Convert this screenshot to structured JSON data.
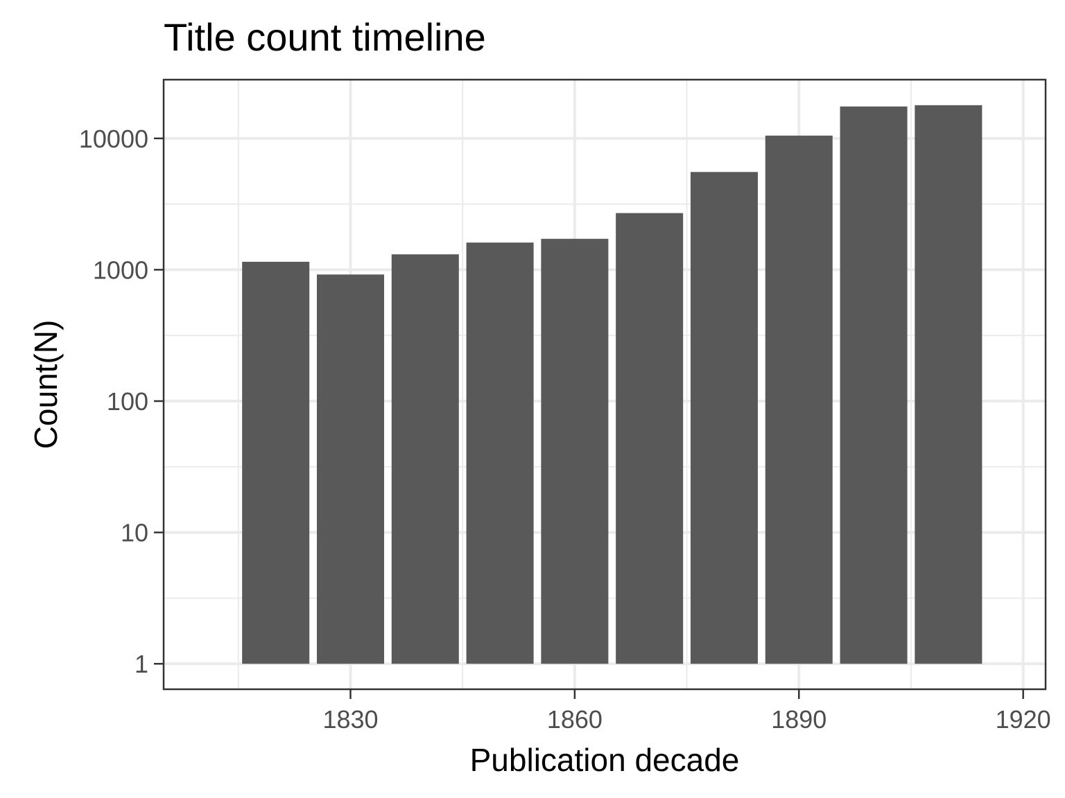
{
  "chart_data": {
    "type": "bar",
    "title": "Title count timeline",
    "xlabel": "Publication decade",
    "ylabel": "Count(N)",
    "x_scale": "linear",
    "y_scale": "log10",
    "xlim": [
      1805,
      1923
    ],
    "ylim": [
      0.64,
      28000
    ],
    "x_ticks": [
      1830,
      1860,
      1890,
      1920
    ],
    "y_ticks": [
      1,
      10,
      100,
      1000,
      10000
    ],
    "y_tick_labels": [
      "1",
      "10",
      "100",
      "1000",
      "10000"
    ],
    "grid": true,
    "bar_width": 9,
    "x": [
      1820,
      1830,
      1840,
      1850,
      1860,
      1870,
      1880,
      1890,
      1900,
      1910
    ],
    "values": [
      1150,
      920,
      1310,
      1610,
      1720,
      2700,
      5550,
      10500,
      17500,
      17900
    ],
    "bar_color": "#595959"
  }
}
